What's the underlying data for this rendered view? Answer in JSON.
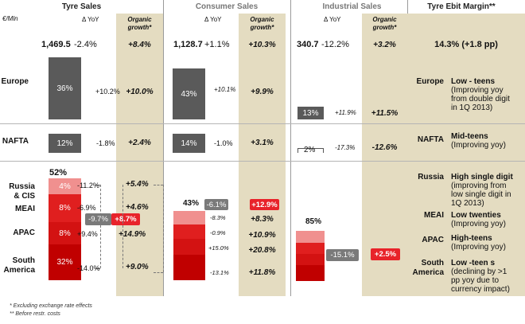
{
  "headers": {
    "tyre_sales": "Tyre Sales",
    "consumer_sales": "Consumer Sales",
    "industrial_sales": "Industrial Sales",
    "ebit_margin": "Tyre Ebit Margin**",
    "unit": "€/Mln",
    "dyoy": "Δ YoY",
    "organic_l1": "Organic",
    "organic_l2": "growth*"
  },
  "totals": {
    "tyre_value": "1,469.5",
    "tyre_yoy": "-2.4%",
    "tyre_organic": "+8.4%",
    "consumer_value": "1,128.7",
    "consumer_yoy": "+1.1%",
    "consumer_organic": "+10.3%",
    "industrial_value": "340.7",
    "industrial_yoy": "-12.2%",
    "industrial_organic": "+3.2%",
    "margin": "14.3% (+1.8 pp)"
  },
  "regions": {
    "europe": "Europe",
    "nafta": "NAFTA",
    "russia_l1": "Russia",
    "russia_l2": "& CIS",
    "meai": "MEAI",
    "apac": "APAC",
    "south_l1": "South",
    "south_l2": "America"
  },
  "europe": {
    "tyre_share": "36%",
    "tyre_yoy": "+10.2%",
    "tyre_organic": "+10.0%",
    "consumer_share": "43%",
    "consumer_yoy": "+10.1%",
    "consumer_organic": "+9.9%",
    "industrial_share": "13%",
    "industrial_yoy": "+11.9%",
    "industrial_organic": "+11.5%"
  },
  "nafta": {
    "tyre_share": "12%",
    "tyre_yoy": "-1.8%",
    "tyre_organic": "+2.4%",
    "consumer_share": "14%",
    "consumer_yoy": "-1.0%",
    "consumer_organic": "+3.1%",
    "industrial_share": "2%",
    "industrial_yoy": "-17.3%",
    "industrial_organic": "-12.6%"
  },
  "emerging": {
    "tyre_total_share": "52%",
    "tyre_segments": [
      "4%",
      "8%",
      "8%",
      "32%"
    ],
    "tyre_yoy": [
      "-11.2%",
      "-6.9%",
      "+9.4%",
      "-14.0%"
    ],
    "tyre_combined_yoy": "-9.7%",
    "tyre_combined_organic": "+8.7%",
    "tyre_organic": [
      "+5.4%",
      "+4.6%",
      "+14.9%",
      "+9.0%"
    ],
    "consumer_total_share": "43%",
    "consumer_combined_yoy": "-6.1%",
    "consumer_combined_organic": "+12.9%",
    "consumer_yoy": [
      "-8.3%",
      "-0.9%",
      "+15.0%",
      "-13.1%"
    ],
    "consumer_organic": [
      "+8.3%",
      "+10.9%",
      "+20.8%",
      "+11.8%"
    ],
    "industrial_total_share": "85%",
    "industrial_combined_yoy": "-15.1%",
    "industrial_combined_organic": "+2.5%"
  },
  "margins": {
    "europe_l1": "Low - teens",
    "europe_l2": "(Improving yoy",
    "europe_l3": "from double digit",
    "europe_l4": "in 1Q 2013)",
    "nafta_l1": "Mid-teens",
    "nafta_l2": "(Improving yoy)",
    "russia_l1": "High single digit",
    "russia_l2": "(improving from",
    "russia_l3": "low single digit in",
    "russia_l4": "1Q 2013)",
    "meai_l1": "Low twenties",
    "meai_l2": "(Improving yoy)",
    "apac_l1": "High-teens",
    "apac_l2": "(Improving yoy)",
    "south_l1": "Low -teen s",
    "south_l2": "(declining by >1",
    "south_l3": "pp yoy due to",
    "south_l4": "currency impact)"
  },
  "footnotes": {
    "f1": "*  Excluding exchange rate effects",
    "f2": "** Before restr. costs"
  },
  "colors": {
    "grey_bar": "#5a5a5a",
    "organic_bg": "#e4dcc1",
    "red_dark": "#c00000",
    "red_mid": "#e01f1f",
    "red_light": "#f0908f",
    "badge_red": "#e8232a"
  },
  "chart_data": {
    "type": "bar",
    "categories": [
      "Europe",
      "NAFTA",
      "Russia & CIS",
      "MEAI",
      "APAC",
      "South America"
    ],
    "series": [
      {
        "name": "Tyre Sales",
        "values": [
          36,
          12,
          4,
          8,
          8,
          32
        ]
      },
      {
        "name": "Consumer Sales",
        "values": [
          43,
          14,
          null,
          null,
          null,
          null
        ]
      },
      {
        "name": "Industrial Sales",
        "values": [
          13,
          2,
          null,
          null,
          null,
          null
        ]
      }
    ]
  }
}
